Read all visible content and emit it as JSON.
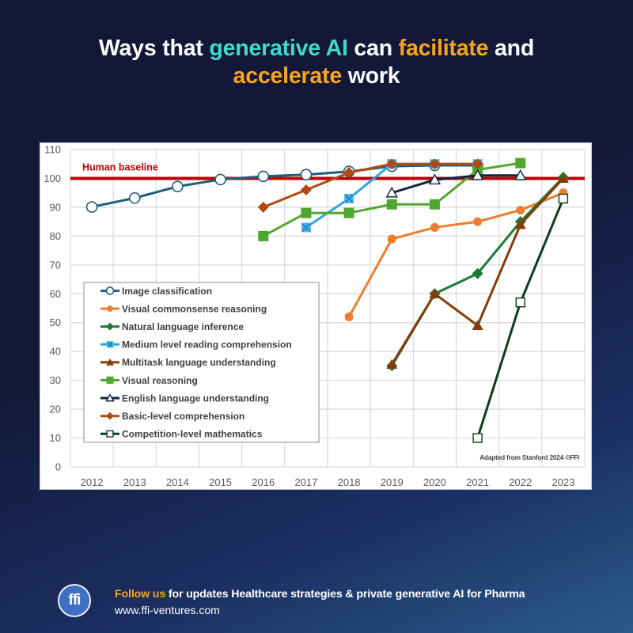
{
  "title": {
    "line1": [
      {
        "text": "Ways that ",
        "style": "white"
      },
      {
        "text": "generative AI",
        "style": "cyan"
      },
      {
        "text": " can ",
        "style": "white"
      },
      {
        "text": "facilitate",
        "style": "orange"
      },
      {
        "text": " and",
        "style": "white"
      }
    ],
    "line2": [
      {
        "text": "accelerate",
        "style": "orange"
      },
      {
        "text": " work",
        "style": "white"
      }
    ]
  },
  "colors": {
    "background_top": "#131737",
    "background_bottom": "#2a5a8a",
    "title_cyan": "#3fd8cf",
    "title_orange": "#f5a61c",
    "human_baseline": "#c00000"
  },
  "chart_data": {
    "type": "line",
    "title": "",
    "xlabel": "",
    "ylabel": "",
    "x": [
      "2012",
      "2013",
      "2014",
      "2015",
      "2016",
      "2017",
      "2018",
      "2019",
      "2020",
      "2021",
      "2022",
      "2023"
    ],
    "ylim": [
      0,
      110
    ],
    "yticks": [
      0,
      10,
      20,
      30,
      40,
      50,
      60,
      70,
      80,
      90,
      100,
      110
    ],
    "grid": true,
    "legend_position": "bottom-left",
    "reference_line": {
      "label": "Human baseline",
      "value": 100,
      "color": "#c00000"
    },
    "annotation": "Adapted from Stanford 2024 ©FFI",
    "series": [
      {
        "name": "Image classification",
        "color": "#1f5f7e",
        "marker": "circle-open",
        "values": [
          90.1,
          93.2,
          97.2,
          99.6,
          100.7,
          101.3,
          102.4,
          104.2,
          104.5,
          104.5,
          null,
          null
        ]
      },
      {
        "name": "Visual commonsense reasoning",
        "color": "#ed7d31",
        "marker": "circle",
        "values": [
          null,
          null,
          null,
          null,
          null,
          null,
          52,
          79,
          83,
          85,
          89,
          95
        ]
      },
      {
        "name": "Natural language inference",
        "color": "#1e7b34",
        "marker": "diamond",
        "values": [
          null,
          null,
          null,
          null,
          null,
          null,
          null,
          35,
          60,
          67,
          85,
          100.4
        ]
      },
      {
        "name": "Medium level reading comprehension",
        "color": "#2ea6df",
        "marker": "square-x",
        "values": [
          null,
          null,
          null,
          null,
          null,
          83,
          93,
          105,
          105,
          105,
          null,
          null
        ]
      },
      {
        "name": "Multitask language understanding",
        "color": "#843c0c",
        "marker": "triangle",
        "values": [
          null,
          null,
          null,
          null,
          null,
          null,
          null,
          35.5,
          60,
          49,
          84,
          100
        ]
      },
      {
        "name": "Visual reasoning",
        "color": "#4ea72e",
        "marker": "square",
        "values": [
          null,
          null,
          null,
          null,
          80,
          88,
          88,
          91,
          91,
          103,
          105.3,
          null
        ]
      },
      {
        "name": "English language understanding",
        "color": "#0e2841",
        "marker": "triangle-open",
        "values": [
          null,
          null,
          null,
          null,
          null,
          null,
          null,
          95,
          99.5,
          101,
          101,
          null
        ]
      },
      {
        "name": "Basic-level comprehension",
        "color": "#b04a12",
        "marker": "diamond",
        "values": [
          null,
          null,
          null,
          null,
          90,
          96,
          102,
          105,
          105,
          105,
          null,
          null
        ]
      },
      {
        "name": "Competition-level mathematics",
        "color": "#0b3d1a",
        "marker": "square-open",
        "values": [
          null,
          null,
          null,
          null,
          null,
          null,
          null,
          null,
          null,
          10,
          57,
          93
        ]
      }
    ]
  },
  "footer": {
    "logo_text": "ffi",
    "follow": "Follow us",
    "message": " for updates Healthcare strategies & private generative AI for Pharma",
    "url": "www.ffi-ventures.com"
  }
}
